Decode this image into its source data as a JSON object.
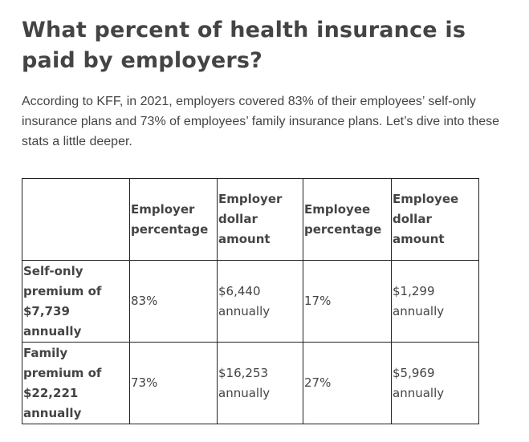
{
  "article": {
    "heading": "What percent of health insurance is paid by employers?",
    "intro": "According to KFF, in 2021, employers covered 83% of their employees’ self-only insurance plans and 73% of employees’ family insurance plans. Let’s dive into these stats a little deeper."
  },
  "table": {
    "headers": [
      "",
      "Employer percentage",
      "Employer dollar amount",
      "Employee percentage",
      "Employee dollar amount"
    ],
    "rows": [
      {
        "label": "Self-only premium of $7,739 annually",
        "employer_percentage": "83%",
        "employer_dollar_amount": "$6,440 annually",
        "employee_percentage": "17%",
        "employee_dollar_amount": "$1,299 annually"
      },
      {
        "label": "Family premium of $22,221 annually",
        "employer_percentage": "73%",
        "employer_dollar_amount": "$16,253 annually",
        "employee_percentage": "27%",
        "employee_dollar_amount": "$5,969 annually"
      }
    ]
  }
}
